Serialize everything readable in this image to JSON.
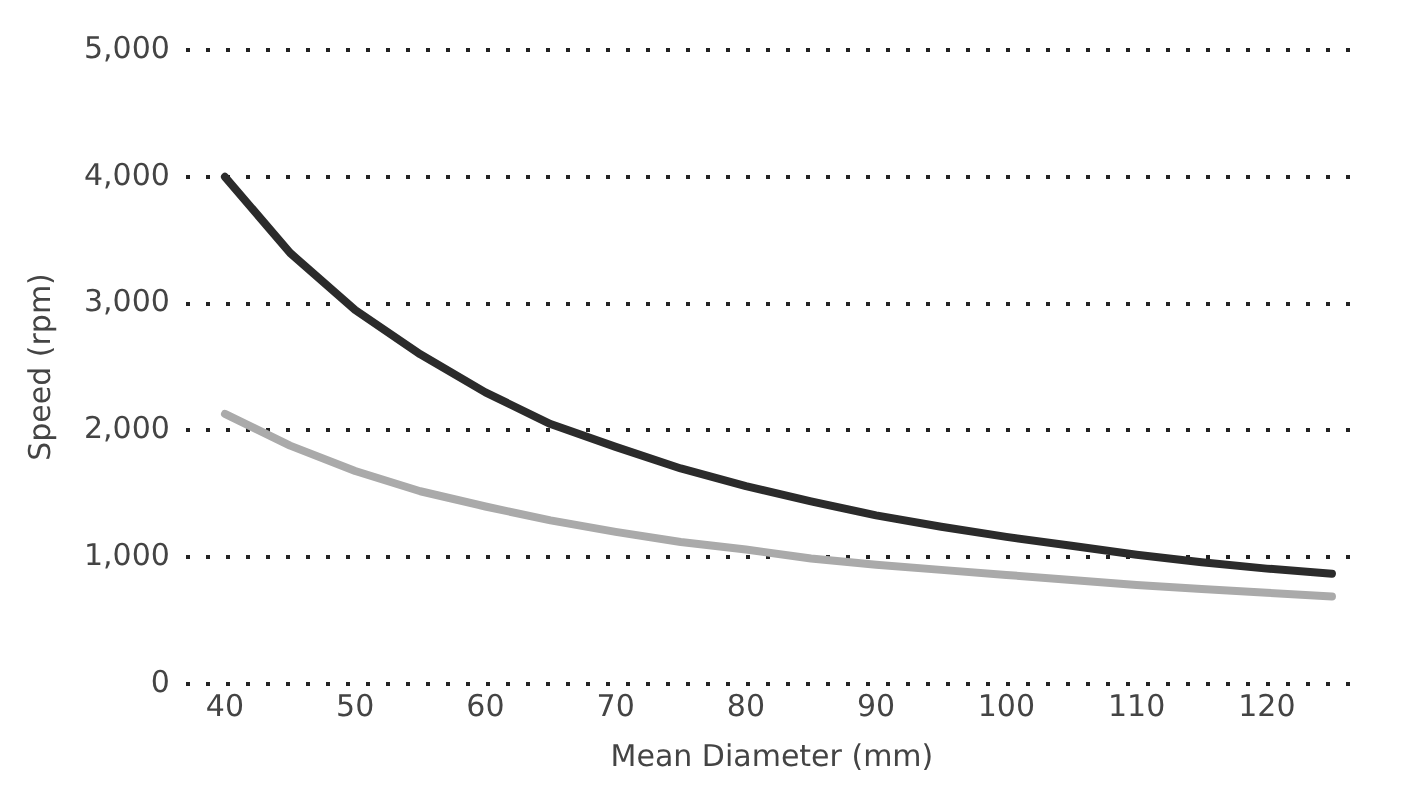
{
  "chart_data": {
    "type": "line",
    "xlabel": "Mean Diameter (mm)",
    "ylabel": "Speed (rpm)",
    "x": [
      40,
      45,
      50,
      55,
      60,
      65,
      70,
      75,
      80,
      85,
      90,
      95,
      100,
      105,
      110,
      115,
      120,
      125
    ],
    "series": [
      {
        "color": "#2b2b2b",
        "values": [
          4000,
          3400,
          2950,
          2600,
          2300,
          2050,
          1870,
          1700,
          1560,
          1440,
          1330,
          1240,
          1160,
          1090,
          1020,
          960,
          910,
          870
        ]
      },
      {
        "color": "#aaaaaa",
        "values": [
          2130,
          1880,
          1680,
          1520,
          1400,
          1290,
          1200,
          1120,
          1060,
          990,
          940,
          900,
          860,
          820,
          780,
          750,
          720,
          690
        ]
      }
    ],
    "xlim": [
      37,
      127
    ],
    "xticks": [
      40,
      50,
      60,
      70,
      80,
      90,
      100,
      110,
      120
    ],
    "ylim": [
      0,
      5000
    ],
    "yticks": [
      {
        "value": 0,
        "label": "0"
      },
      {
        "value": 1000,
        "label": "1,000"
      },
      {
        "value": 2000,
        "label": "2,000"
      },
      {
        "value": 3000,
        "label": "3,000"
      },
      {
        "value": 4000,
        "label": "4,000"
      },
      {
        "value": 5000,
        "label": "5,000"
      }
    ],
    "grid": "y",
    "line_style": "solid",
    "marker": "none",
    "legend": false
  }
}
